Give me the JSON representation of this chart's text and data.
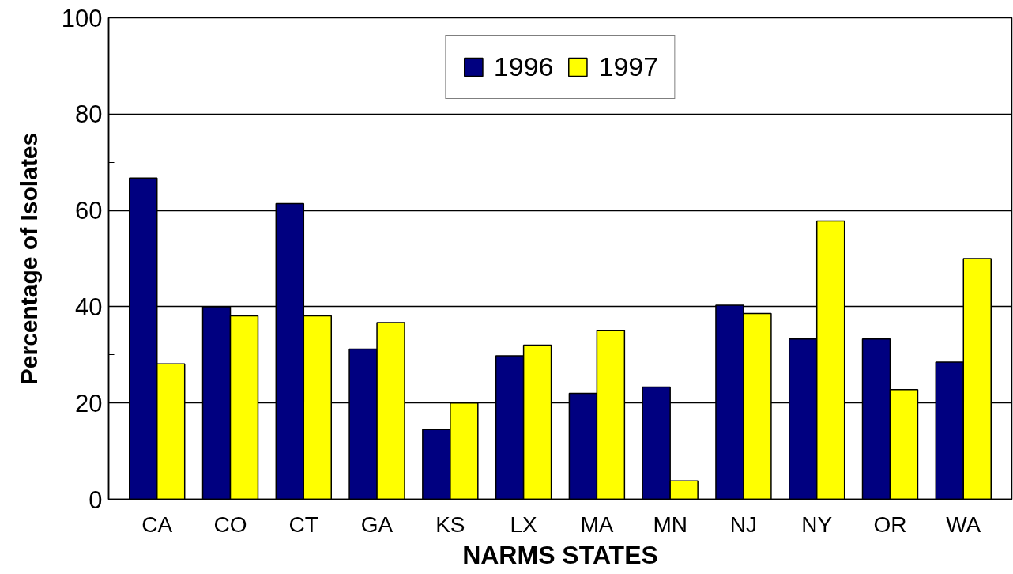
{
  "chart_data": {
    "type": "bar",
    "xlabel": "NARMS STATES",
    "ylabel": "Percentage of Isolates",
    "categories": [
      "CA",
      "CO",
      "CT",
      "GA",
      "KS",
      "LX",
      "MA",
      "MN",
      "NJ",
      "NY",
      "OR",
      "WA"
    ],
    "series": [
      {
        "name": "1996",
        "color": "#000080",
        "values": [
          66.7,
          40,
          61.4,
          31.2,
          14.5,
          29.8,
          22,
          23.3,
          40.3,
          33.3,
          33.3,
          28.5
        ]
      },
      {
        "name": "1997",
        "color": "#ffff00",
        "values": [
          28.1,
          38.1,
          38.1,
          36.7,
          20,
          32,
          35,
          3.8,
          38.6,
          57.8,
          22.8,
          50
        ]
      }
    ],
    "ylim": [
      0,
      100
    ],
    "yticks": [
      0,
      {
        "value": 10,
        "label": null
      },
      20,
      {
        "value": 30,
        "label": null
      },
      40,
      {
        "value": 50,
        "label": null
      },
      60,
      {
        "value": 70,
        "label": null
      },
      80,
      {
        "value": 90,
        "label": null
      },
      100
    ],
    "grid": "y",
    "legend": "top"
  }
}
